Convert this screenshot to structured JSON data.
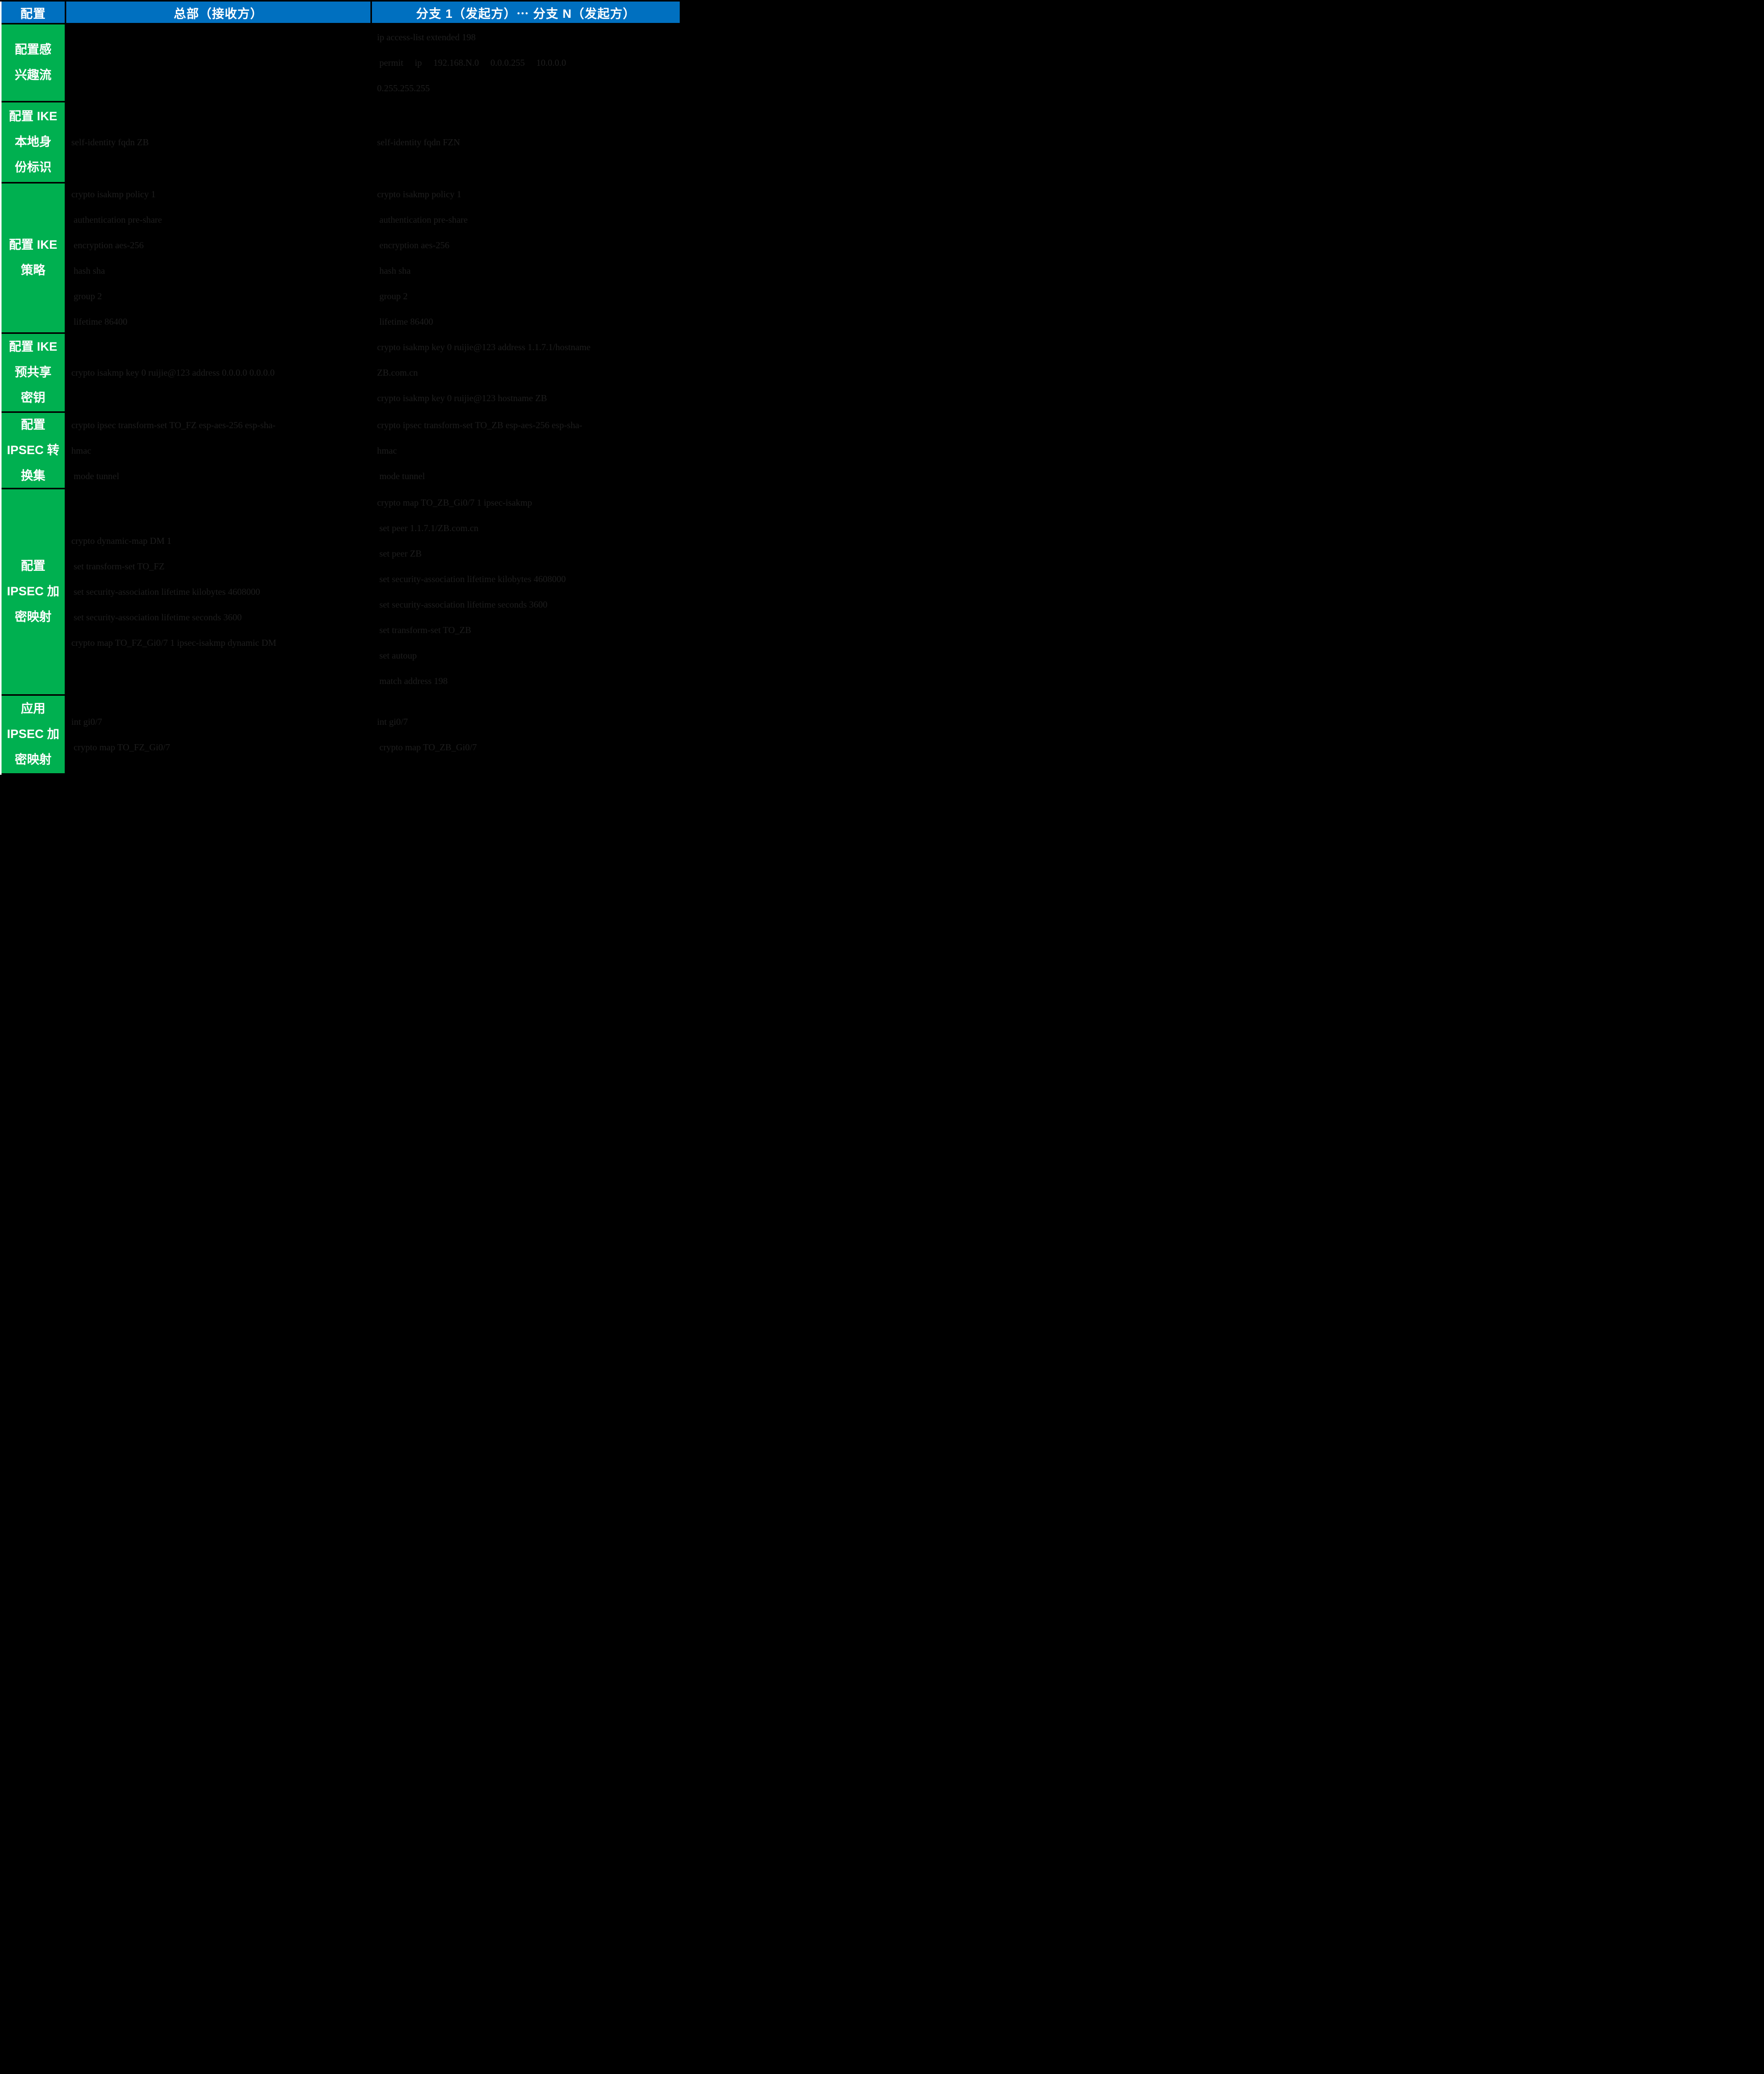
{
  "header": {
    "config": "配置",
    "hq": "总部（接收方）",
    "branch": "分支 1（发起方）⋯  分支 N（发起方）"
  },
  "colors": {
    "header_bg": "#0070C0",
    "label_bg": "#00B050",
    "content_bg": "#000000",
    "code_text": "#1e1e1e",
    "header_text": "#FFFFFF"
  },
  "rows": [
    {
      "label": "配置感\n兴趣流",
      "hq": [],
      "branch": [
        "ip access-list extended 198",
        " permit     ip     192.168.N.0     0.0.0.255     10.0.0.0",
        "0.255.255.255"
      ]
    },
    {
      "label": "配置 IKE\n本地身\n份标识",
      "hq": [
        "self-identity fqdn ZB"
      ],
      "branch": [
        "self-identity fqdn FZN"
      ]
    },
    {
      "label": "配置 IKE\n策略",
      "hq": [
        "crypto isakmp policy 1",
        " authentication pre-share",
        " encryption aes-256",
        " hash sha",
        " group 2",
        " lifetime 86400"
      ],
      "branch": [
        "crypto isakmp policy 1",
        " authentication pre-share",
        " encryption aes-256",
        " hash sha",
        " group 2",
        " lifetime 86400"
      ]
    },
    {
      "label": "配置 IKE\n预共享\n密钥",
      "hq": [
        "crypto isakmp key 0 ruijie@123 address 0.0.0.0 0.0.0.0"
      ],
      "branch": [
        "crypto isakmp key 0 ruijie@123 address 1.1.7.1/hostname",
        "ZB.com.cn",
        "crypto isakmp key 0 ruijie@123 hostname ZB"
      ]
    },
    {
      "label": "配置\nIPSEC 转\n换集",
      "hq": [
        "crypto ipsec transform-set TO_FZ esp-aes-256 esp-sha-",
        "hmac",
        " mode tunnel"
      ],
      "branch": [
        "crypto ipsec transform-set TO_ZB esp-aes-256 esp-sha-",
        "hmac",
        " mode tunnel"
      ]
    },
    {
      "label": "配置\nIPSEC 加\n密映射",
      "hq": [
        "crypto dynamic-map DM 1",
        " set transform-set TO_FZ",
        " set security-association lifetime kilobytes 4608000",
        " set security-association lifetime seconds 3600",
        "crypto map TO_FZ_Gi0/7 1 ipsec-isakmp dynamic DM"
      ],
      "branch": [
        "crypto map TO_ZB_Gi0/7 1 ipsec-isakmp",
        " set peer 1.1.7.1/ZB.com.cn",
        " set peer ZB",
        " set security-association lifetime kilobytes 4608000",
        " set security-association lifetime seconds 3600",
        " set transform-set TO_ZB",
        " set autoup",
        " match address 198"
      ]
    },
    {
      "label": "应用\nIPSEC 加\n密映射",
      "hq": [
        "int gi0/7",
        " crypto map TO_FZ_Gi0/7"
      ],
      "branch": [
        "int gi0/7",
        " crypto map TO_ZB_Gi0/7"
      ]
    }
  ]
}
